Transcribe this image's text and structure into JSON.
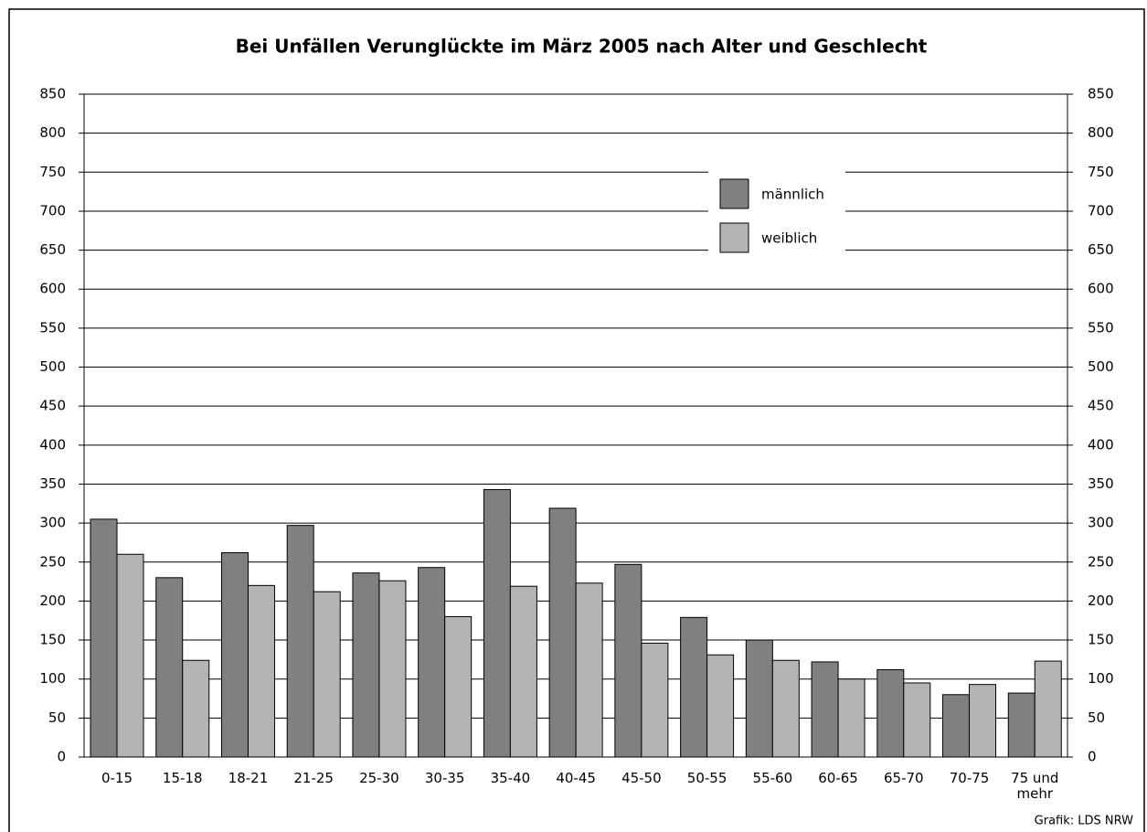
{
  "chart_data": {
    "type": "bar",
    "title": "Bei Unfällen Verunglückte im März 2005 nach Alter und Geschlecht",
    "categories": [
      "0-15",
      "15-18",
      "18-21",
      "21-25",
      "25-30",
      "30-35",
      "35-40",
      "40-45",
      "45-50",
      "50-55",
      "55-60",
      "60-65",
      "65-70",
      "70-75",
      "75 und mehr"
    ],
    "series": [
      {
        "name": "männlich",
        "color": "#808080",
        "values": [
          305,
          230,
          262,
          297,
          236,
          243,
          343,
          319,
          247,
          179,
          150,
          122,
          112,
          80,
          82
        ]
      },
      {
        "name": "weiblich",
        "color": "#b4b4b4",
        "values": [
          260,
          124,
          220,
          212,
          226,
          180,
          219,
          223,
          146,
          131,
          124,
          100,
          95,
          93,
          123
        ]
      }
    ],
    "ylim": [
      0,
      850
    ],
    "yticks": [
      0,
      50,
      100,
      150,
      200,
      250,
      300,
      350,
      400,
      450,
      500,
      550,
      600,
      650,
      700,
      750,
      800,
      850
    ],
    "grid": true,
    "source": "Grafik: LDS NRW"
  }
}
